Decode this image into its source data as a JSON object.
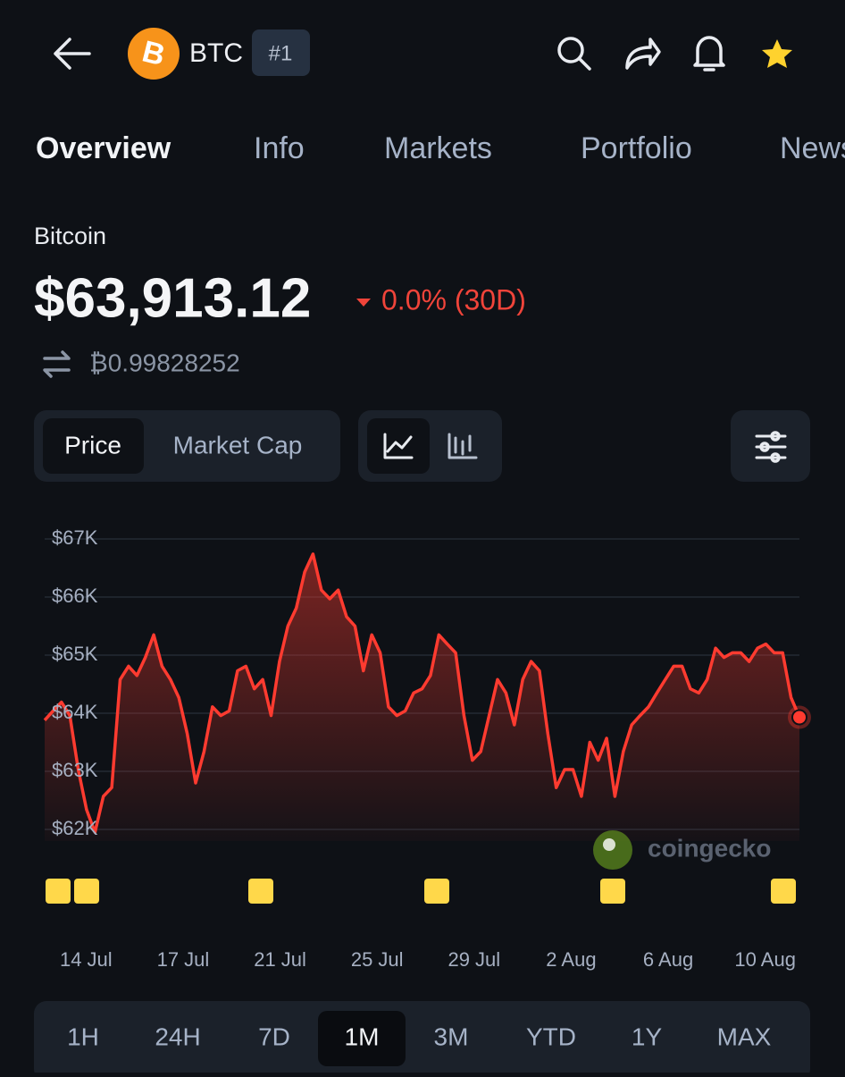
{
  "header": {
    "symbol": "BTC",
    "rank": "#1"
  },
  "tabs": [
    "Overview",
    "Info",
    "Markets",
    "Portfolio",
    "News"
  ],
  "coin": {
    "name": "Bitcoin",
    "price": "$63,913.12",
    "change": "0.0% (30D)",
    "btc_price": "₿0.99828252"
  },
  "view_toggle": [
    "Price",
    "Market Cap"
  ],
  "watermark": "coingecko",
  "chart": {
    "type": "line",
    "color": "#ff3b30",
    "values": [
      63880,
      64040,
      64190,
      63960,
      63030,
      62340,
      61950,
      62570,
      62720,
      64580,
      64810,
      64650,
      64960,
      65350,
      64810,
      64580,
      64270,
      63650,
      62800,
      63340,
      64110,
      63960,
      64040,
      64730,
      64810,
      64420,
      64580,
      63960,
      64890,
      65500,
      65810,
      66430,
      66740,
      66120,
      65970,
      66120,
      65660,
      65500,
      64730,
      65350,
      65040,
      64110,
      63960,
      64040,
      64350,
      64420,
      64650,
      65350,
      65190,
      65040,
      63960,
      63190,
      63340,
      63960,
      64580,
      64350,
      63800,
      64580,
      64890,
      64730,
      63650,
      62720,
      63030,
      63030,
      62570,
      63500,
      63190,
      63570,
      62570,
      63340,
      63800,
      63960,
      64110,
      64350,
      64580,
      64810,
      64810,
      64420,
      64350,
      64580,
      65120,
      64960,
      65040,
      65040,
      64890,
      65120,
      65190,
      65040,
      65040,
      64270,
      63930
    ],
    "ylim": [
      61800,
      67200
    ],
    "yticks": [
      {
        "value": 62000,
        "label": "$62K"
      },
      {
        "value": 63000,
        "label": "$63K"
      },
      {
        "value": 64000,
        "label": "$64K"
      },
      {
        "value": 65000,
        "label": "$65K"
      },
      {
        "value": 66000,
        "label": "$66K"
      },
      {
        "value": 67000,
        "label": "$67K"
      }
    ],
    "x_labels": [
      "14 Jul",
      "17 Jul",
      "21 Jul",
      "25 Jul",
      "29 Jul",
      "2 Aug",
      "6 Aug",
      "10 Aug"
    ],
    "grid": true
  },
  "time_ranges": [
    "1H",
    "24H",
    "7D",
    "1M",
    "3M",
    "YTD",
    "1Y",
    "MAX"
  ]
}
